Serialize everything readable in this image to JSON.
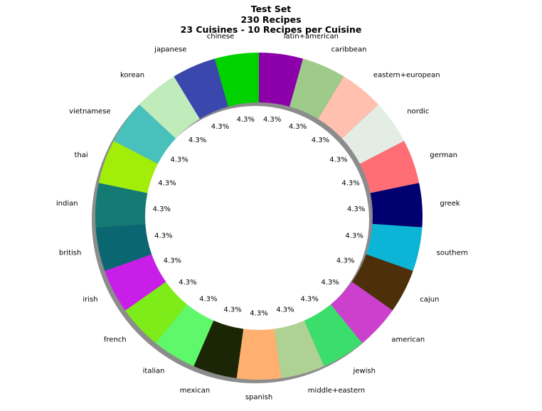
{
  "chart_data": {
    "type": "pie",
    "donut": true,
    "shadow": true,
    "title": [
      "Test Set",
      "230 Recipes",
      "23 Cuisines - 10 Recipes per Cuisine"
    ],
    "slices": [
      {
        "label": "latin+american",
        "value": 10,
        "pct": "4.3%",
        "color": "#8b00a8"
      },
      {
        "label": "caribbean",
        "value": 10,
        "pct": "4.3%",
        "color": "#9ecb8a"
      },
      {
        "label": "eastern+european",
        "value": 10,
        "pct": "4.3%",
        "color": "#ffc0b0"
      },
      {
        "label": "nordic",
        "value": 10,
        "pct": "4.3%",
        "color": "#e4ede4"
      },
      {
        "label": "german",
        "value": 10,
        "pct": "4.3%",
        "color": "#ff6e74"
      },
      {
        "label": "greek",
        "value": 10,
        "pct": "4.3%",
        "color": "#000070"
      },
      {
        "label": "southern",
        "value": 10,
        "pct": "4.3%",
        "color": "#0cb4d6"
      },
      {
        "label": "cajun",
        "value": 10,
        "pct": "4.3%",
        "color": "#4d300a"
      },
      {
        "label": "american",
        "value": 10,
        "pct": "4.3%",
        "color": "#cb40cc"
      },
      {
        "label": "jewish",
        "value": 10,
        "pct": "4.3%",
        "color": "#3bde6a"
      },
      {
        "label": "middle+eastern",
        "value": 10,
        "pct": "4.3%",
        "color": "#aed194"
      },
      {
        "label": "spanish",
        "value": 10,
        "pct": "4.3%",
        "color": "#ffb06e"
      },
      {
        "label": "mexican",
        "value": 10,
        "pct": "4.3%",
        "color": "#1a2606"
      },
      {
        "label": "italian",
        "value": 10,
        "pct": "4.3%",
        "color": "#5ef86a"
      },
      {
        "label": "french",
        "value": 10,
        "pct": "4.3%",
        "color": "#7eec18"
      },
      {
        "label": "irish",
        "value": 10,
        "pct": "4.3%",
        "color": "#c81ee8"
      },
      {
        "label": "british",
        "value": 10,
        "pct": "4.3%",
        "color": "#0a6670"
      },
      {
        "label": "indian",
        "value": 10,
        "pct": "4.3%",
        "color": "#147a74"
      },
      {
        "label": "thai",
        "value": 10,
        "pct": "4.3%",
        "color": "#a2ee08"
      },
      {
        "label": "vietnamese",
        "value": 10,
        "pct": "4.3%",
        "color": "#48c0bc"
      },
      {
        "label": "korean",
        "value": 10,
        "pct": "4.3%",
        "color": "#c0ecbc"
      },
      {
        "label": "japanese",
        "value": 10,
        "pct": "4.3%",
        "color": "#3a48ae"
      },
      {
        "label": "chinese",
        "value": 10,
        "pct": "4.3%",
        "color": "#00d200"
      }
    ]
  }
}
